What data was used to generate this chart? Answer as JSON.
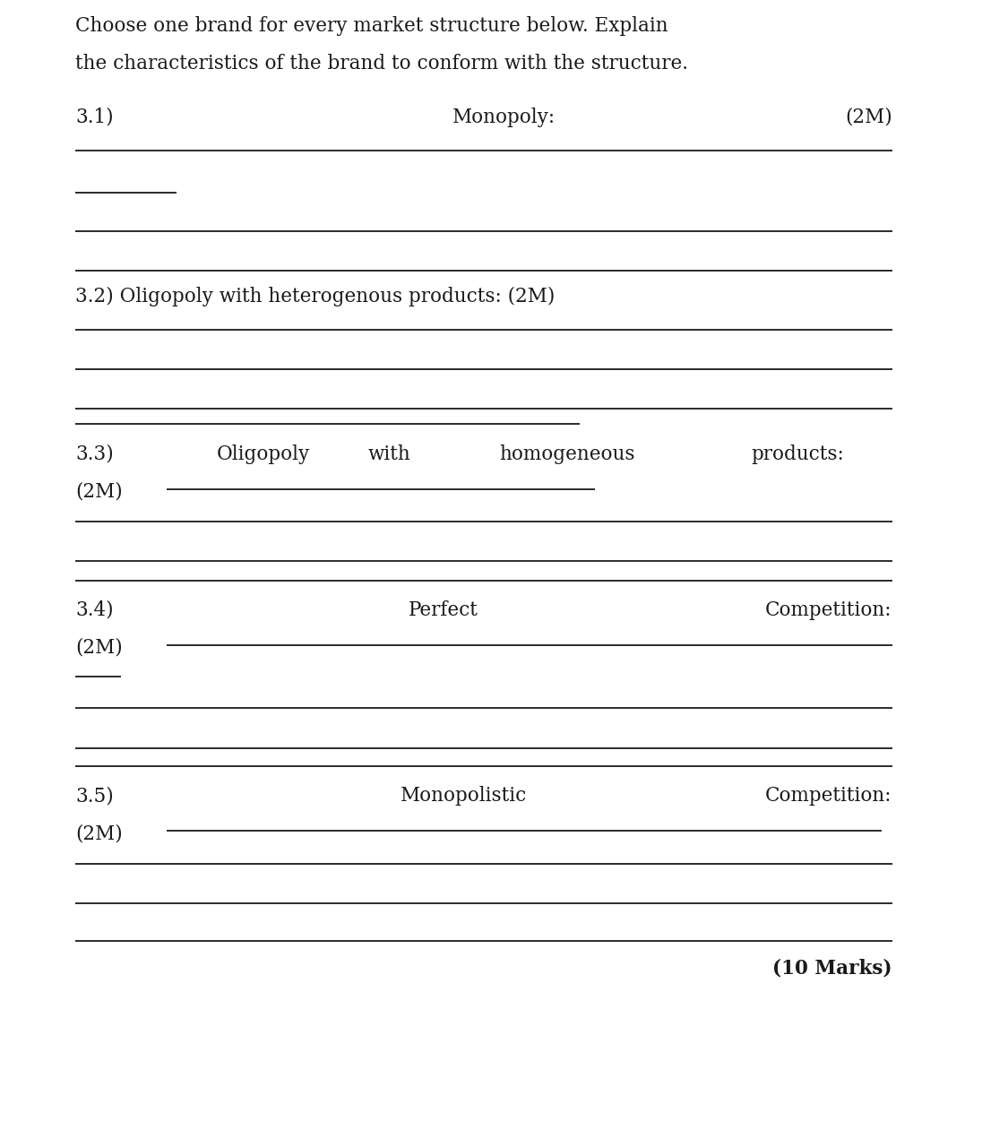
{
  "bg_color": "#ffffff",
  "text_color": "#1a1a1a",
  "line_color": "#1a1a1a",
  "font_family": "DejaVu Serif",
  "title_text_1": "Choose one brand for every market structure below. Explain",
  "title_text_2": "the characteristics of the brand to conform with the structure.",
  "marks_text": "(10 Marks)",
  "fig_width": 11.25,
  "fig_height": 12.61,
  "dpi": 100,
  "lmargin": 0.075,
  "rmargin": 0.885,
  "fontsize": 15.5
}
